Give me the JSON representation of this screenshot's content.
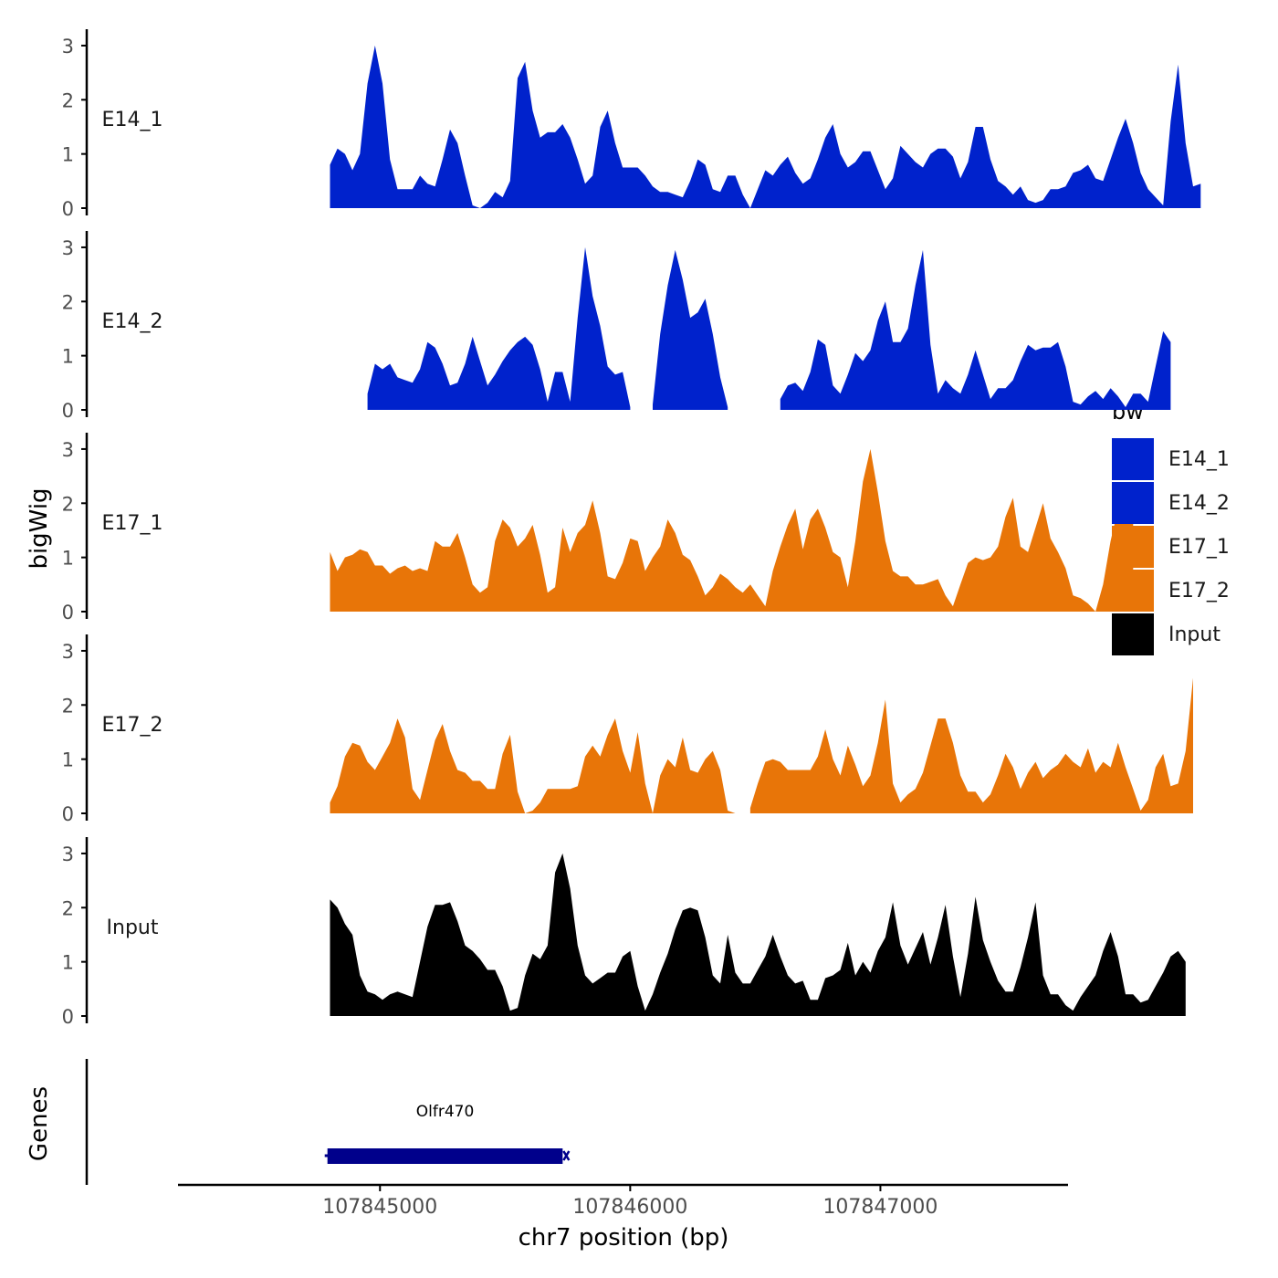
{
  "chart_data": {
    "type": "area",
    "ylabel": "bigWig",
    "xlabel": "chr7 position (bp)",
    "xlim": [
      107844200,
      107847750
    ],
    "ylim": [
      0,
      3.1
    ],
    "yticks": [
      "0",
      "1",
      "2",
      "3"
    ],
    "xticks": [
      {
        "value": 107845000,
        "label": "107845000"
      },
      {
        "value": 107846000,
        "label": "107846000"
      },
      {
        "value": 107847000,
        "label": "107847000"
      }
    ],
    "legend": {
      "title": "bw",
      "position": "right",
      "entries": [
        {
          "name": "E14_1",
          "color": "#0022CC"
        },
        {
          "name": "E14_2",
          "color": "#0022CC"
        },
        {
          "name": "E17_1",
          "color": "#E87508"
        },
        {
          "name": "E17_2",
          "color": "#E87508"
        },
        {
          "name": "Input",
          "color": "#000000"
        }
      ]
    },
    "x_start": 107844800,
    "x_step": 30,
    "series": [
      {
        "name": "E14_1",
        "color": "#0022CC",
        "values": [
          0.8,
          1.1,
          1.0,
          0.7,
          1.0,
          2.3,
          3.0,
          2.3,
          0.9,
          0.35,
          0.35,
          0.35,
          0.6,
          0.45,
          0.4,
          0.9,
          1.45,
          1.2,
          0.6,
          0.05,
          0,
          0.1,
          0.3,
          0.2,
          0.5,
          2.4,
          2.7,
          1.8,
          1.3,
          1.4,
          1.4,
          1.55,
          1.3,
          0.9,
          0.45,
          0.6,
          1.5,
          1.8,
          1.2,
          0.75,
          0.75,
          0.75,
          0.6,
          0.4,
          0.3,
          0.3,
          0.25,
          0.2,
          0.5,
          0.9,
          0.8,
          0.35,
          0.3,
          0.6,
          0.6,
          0.25,
          0,
          0.35,
          0.7,
          0.6,
          0.8,
          0.95,
          0.65,
          0.45,
          0.55,
          0.9,
          1.3,
          1.55,
          1.0,
          0.75,
          0.85,
          1.05,
          1.05,
          0.7,
          0.35,
          0.55,
          1.15,
          1.0,
          0.85,
          0.75,
          1.0,
          1.1,
          1.1,
          0.95,
          0.55,
          0.85,
          1.5,
          1.5,
          0.9,
          0.5,
          0.4,
          0.25,
          0.4,
          0.15,
          0.1,
          0.15,
          0.35,
          0.35,
          0.4,
          0.65,
          0.7,
          0.8,
          0.55,
          0.5,
          0.9,
          1.3,
          1.65,
          1.2,
          0.65,
          0.35,
          0.2,
          0.05,
          1.6,
          2.65,
          1.2,
          0.4,
          0.45
        ]
      },
      {
        "name": "E14_2",
        "color": "#0022CC",
        "values": [
          null,
          null,
          null,
          null,
          null,
          0.3,
          0.85,
          0.75,
          0.85,
          0.6,
          0.55,
          0.5,
          0.75,
          1.25,
          1.15,
          0.85,
          0.45,
          0.5,
          0.85,
          1.35,
          0.9,
          0.45,
          0.65,
          0.9,
          1.1,
          1.25,
          1.35,
          1.2,
          0.75,
          0.15,
          0.7,
          0.7,
          0.15,
          1.7,
          3.0,
          2.1,
          1.55,
          0.8,
          0.65,
          0.7,
          0.05,
          null,
          null,
          0.1,
          1.4,
          2.3,
          2.95,
          2.4,
          1.7,
          1.8,
          2.05,
          1.4,
          0.6,
          0.05,
          null,
          null,
          null,
          null,
          null,
          null,
          0.2,
          0.45,
          0.5,
          0.35,
          0.7,
          1.3,
          1.2,
          0.45,
          0.3,
          0.65,
          1.05,
          0.9,
          1.1,
          1.65,
          2.0,
          1.25,
          1.25,
          1.5,
          2.3,
          2.95,
          1.2,
          0.3,
          0.55,
          0.4,
          0.3,
          0.65,
          1.1,
          0.65,
          0.2,
          0.4,
          0.4,
          0.55,
          0.9,
          1.2,
          1.1,
          1.15,
          1.15,
          1.25,
          0.8,
          0.15,
          0.1,
          0.25,
          0.35,
          0.2,
          0.4,
          0.25,
          0.05,
          0.3,
          0.3,
          0.15,
          0.8,
          1.45,
          1.25
        ]
      },
      {
        "name": "E17_1",
        "color": "#E87508",
        "values": [
          1.1,
          0.75,
          1.0,
          1.05,
          1.15,
          1.1,
          0.85,
          0.85,
          0.7,
          0.8,
          0.85,
          0.75,
          0.8,
          0.75,
          1.3,
          1.2,
          1.2,
          1.45,
          1.0,
          0.5,
          0.35,
          0.45,
          1.3,
          1.7,
          1.55,
          1.2,
          1.35,
          1.6,
          1.05,
          0.35,
          0.45,
          1.55,
          1.1,
          1.45,
          1.6,
          2.05,
          1.45,
          0.65,
          0.6,
          0.9,
          1.35,
          1.3,
          0.75,
          1.0,
          1.2,
          1.7,
          1.45,
          1.05,
          0.95,
          0.65,
          0.3,
          0.45,
          0.7,
          0.6,
          0.45,
          0.35,
          0.5,
          0.3,
          0.1,
          0.75,
          1.2,
          1.6,
          1.9,
          1.15,
          1.7,
          1.9,
          1.55,
          1.1,
          1.0,
          0.45,
          1.3,
          2.4,
          3.0,
          2.2,
          1.3,
          0.75,
          0.65,
          0.65,
          0.5,
          0.5,
          0.55,
          0.6,
          0.3,
          0.1,
          0.5,
          0.9,
          1.0,
          0.95,
          1.0,
          1.2,
          1.75,
          2.1,
          1.2,
          1.1,
          1.55,
          2.0,
          1.35,
          1.1,
          0.8,
          0.3,
          0.25,
          0.15,
          0.0,
          0.5,
          1.3,
          1.9,
          2.2,
          2.35
        ]
      },
      {
        "name": "E17_2",
        "color": "#E87508",
        "values": [
          0.2,
          0.5,
          1.05,
          1.3,
          1.25,
          0.95,
          0.8,
          1.05,
          1.3,
          1.75,
          1.4,
          0.45,
          0.25,
          0.8,
          1.35,
          1.65,
          1.15,
          0.8,
          0.75,
          0.6,
          0.6,
          0.45,
          0.45,
          1.1,
          1.45,
          0.4,
          0.0,
          0.05,
          0.2,
          0.45,
          0.45,
          0.45,
          0.45,
          0.5,
          1.05,
          1.25,
          1.05,
          1.45,
          1.75,
          1.15,
          0.75,
          1.5,
          0.55,
          0.0,
          0.7,
          1.0,
          0.85,
          1.4,
          0.8,
          0.75,
          1.0,
          1.15,
          0.8,
          0.05,
          0.0,
          null,
          0.1,
          0.55,
          0.95,
          1.0,
          0.95,
          0.8,
          0.8,
          0.8,
          0.8,
          1.05,
          1.55,
          1.0,
          0.7,
          1.25,
          0.9,
          0.5,
          0.7,
          1.3,
          2.1,
          0.55,
          0.2,
          0.35,
          0.45,
          0.75,
          1.25,
          1.75,
          1.75,
          1.3,
          0.7,
          0.4,
          0.4,
          0.2,
          0.35,
          0.7,
          1.1,
          0.85,
          0.45,
          0.75,
          0.95,
          0.65,
          0.8,
          0.9,
          1.1,
          0.95,
          0.85,
          1.2,
          0.75,
          0.95,
          0.85,
          1.3,
          0.85,
          0.45,
          0.05,
          0.25,
          0.85,
          1.1,
          0.5,
          0.55,
          1.15,
          2.5
        ]
      },
      {
        "name": "Input",
        "color": "#000000",
        "values": [
          2.15,
          2.0,
          1.7,
          1.5,
          0.75,
          0.45,
          0.4,
          0.3,
          0.4,
          0.45,
          0.4,
          0.35,
          1.0,
          1.65,
          2.05,
          2.05,
          2.1,
          1.75,
          1.3,
          1.2,
          1.05,
          0.85,
          0.85,
          0.55,
          0.1,
          0.15,
          0.75,
          1.15,
          1.05,
          1.3,
          2.65,
          3.0,
          2.35,
          1.3,
          0.75,
          0.6,
          0.7,
          0.8,
          0.8,
          1.1,
          1.2,
          0.55,
          0.1,
          0.4,
          0.8,
          1.15,
          1.6,
          1.95,
          2.0,
          1.95,
          1.45,
          0.75,
          0.6,
          1.5,
          0.8,
          0.6,
          0.6,
          0.85,
          1.1,
          1.5,
          1.1,
          0.75,
          0.6,
          0.65,
          0.3,
          0.3,
          0.7,
          0.75,
          0.85,
          1.35,
          0.75,
          1.0,
          0.8,
          1.2,
          1.45,
          2.1,
          1.3,
          0.95,
          1.25,
          1.55,
          0.95,
          1.45,
          2.05,
          1.1,
          0.35,
          1.15,
          2.2,
          1.4,
          1.0,
          0.65,
          0.45,
          0.45,
          0.9,
          1.45,
          2.1,
          0.75,
          0.4,
          0.4,
          0.2,
          0.1,
          0.35,
          0.55,
          0.75,
          1.2,
          1.55,
          1.1,
          0.4,
          0.4,
          0.25,
          0.3,
          0.55,
          0.8,
          1.1,
          1.2,
          1.0
        ]
      }
    ],
    "genes": {
      "label": "Genes",
      "items": [
        {
          "name": "Olfr470",
          "start": 107844790,
          "end": 107845730,
          "color": "#00008B"
        }
      ]
    }
  }
}
